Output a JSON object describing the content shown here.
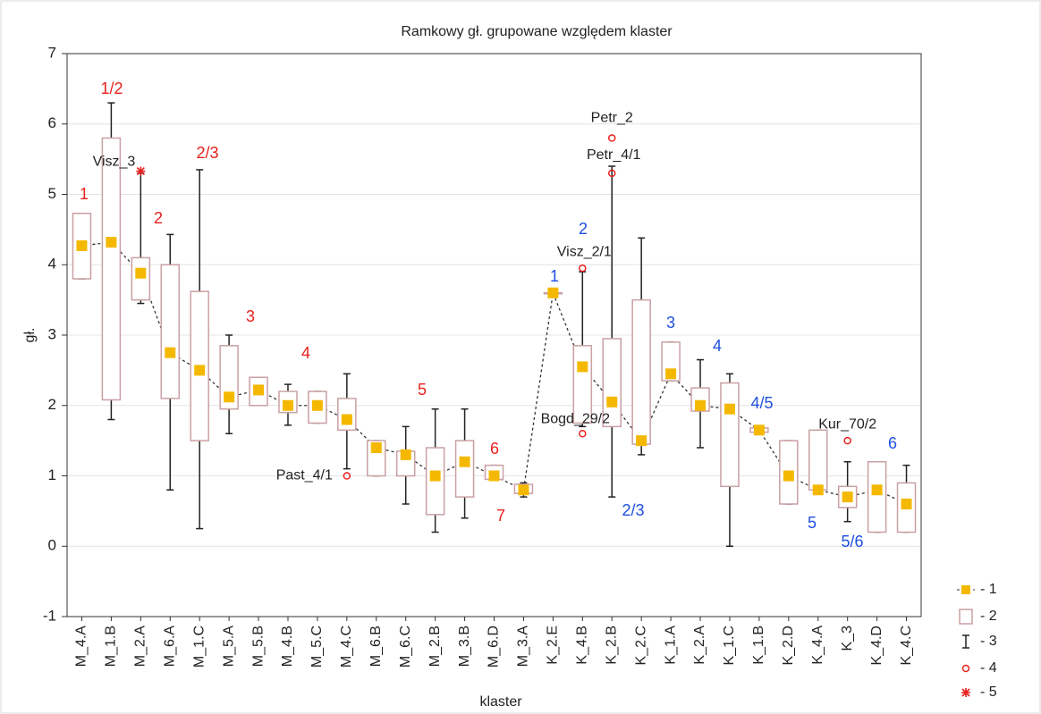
{
  "chart_data": {
    "type": "box",
    "title": "Ramkowy   gł. grupowane względem klaster",
    "x_label": "klaster",
    "y_label": "gł.",
    "categories": [
      "M_4.A",
      "M_1.B",
      "M_2.A",
      "M_6.A",
      "M_1.C",
      "M_5.A",
      "M_5.B",
      "M_4.B",
      "M_5.C",
      "M_4.C",
      "M_6.B",
      "M_6.C",
      "M_2.B",
      "M_3.B",
      "M_6.D",
      "M_3.A",
      "K_2.E",
      "K_4.B",
      "K_2.B",
      "K_2.C",
      "K_1.A",
      "K_2.A",
      "K_1.C",
      "K_1.B",
      "K_2.D",
      "K_4.A",
      "K_3",
      "K_4.D",
      "K_4.C"
    ],
    "median": [
      4.27,
      4.32,
      3.88,
      2.75,
      2.5,
      2.12,
      2.22,
      2.0,
      2.0,
      1.8,
      1.4,
      1.3,
      1.0,
      1.2,
      1.0,
      0.8,
      3.6,
      2.55,
      2.05,
      1.5,
      2.45,
      2.0,
      1.95,
      1.65,
      1.0,
      0.8,
      0.7,
      0.8,
      0.6
    ],
    "q1": [
      3.8,
      2.08,
      3.5,
      2.1,
      1.5,
      1.95,
      2.0,
      1.9,
      1.75,
      1.65,
      1.0,
      1.0,
      0.45,
      0.7,
      0.95,
      0.75,
      3.6,
      1.75,
      1.7,
      1.45,
      2.35,
      1.92,
      0.85,
      1.62,
      0.6,
      0.8,
      0.55,
      0.2,
      0.2
    ],
    "q3": [
      4.73,
      5.8,
      4.1,
      4.0,
      3.62,
      2.85,
      2.4,
      2.2,
      2.2,
      2.1,
      1.5,
      1.35,
      1.4,
      1.5,
      1.15,
      0.88,
      3.6,
      2.85,
      2.95,
      3.5,
      2.9,
      2.25,
      2.32,
      1.68,
      1.5,
      1.65,
      0.85,
      1.2,
      0.9
    ],
    "min": [
      3.8,
      1.8,
      3.45,
      0.8,
      0.25,
      1.6,
      2.0,
      1.72,
      1.75,
      1.1,
      1.0,
      0.6,
      0.2,
      0.4,
      0.95,
      0.7,
      3.6,
      1.7,
      0.7,
      1.3,
      2.35,
      1.4,
      0.0,
      1.62,
      0.6,
      0.8,
      0.35,
      0.2,
      0.2
    ],
    "max": [
      4.73,
      6.3,
      5.3,
      4.43,
      5.35,
      3.0,
      2.4,
      2.3,
      2.2,
      2.45,
      1.5,
      1.7,
      1.95,
      1.95,
      1.15,
      0.9,
      3.6,
      3.9,
      5.4,
      4.38,
      2.9,
      2.65,
      2.45,
      1.68,
      1.5,
      1.65,
      1.2,
      1.2,
      1.15
    ],
    "outliers": [
      [],
      [],
      [],
      [],
      [],
      [],
      [],
      [],
      [],
      [
        {
          "value": 1.0,
          "label": "Past_4/1"
        }
      ],
      [],
      [],
      [],
      [],
      [],
      [],
      [],
      [
        {
          "value": 3.95,
          "label": "Visz_2/1"
        },
        {
          "value": 1.6,
          "label": "Bogd_29/2"
        }
      ],
      [
        {
          "value": 5.8,
          "label": "Petr_2"
        },
        {
          "value": 5.3,
          "label": "Petr_4/1"
        }
      ],
      [],
      [],
      [],
      [],
      [],
      [],
      [],
      [
        {
          "value": 1.5,
          "label": "Kur_70/2"
        }
      ],
      [],
      []
    ],
    "extremes": [
      [],
      [],
      [
        {
          "value": 5.33,
          "label": "Visz_3"
        }
      ],
      [],
      [],
      [],
      [],
      [],
      [],
      [],
      [],
      [],
      [],
      [],
      [],
      [],
      [],
      [],
      [],
      [],
      [],
      [],
      [],
      [],
      [],
      [],
      [],
      [],
      []
    ],
    "ylim": [
      -1,
      7
    ],
    "yticks": [
      -1,
      0,
      1,
      2,
      3,
      4,
      5,
      6,
      7
    ],
    "grid": true,
    "colors": {
      "median": "#f5b800",
      "box": "#c9a0a4",
      "whisker": "#222222",
      "outlier": "#e8211d",
      "extreme": "#e8211d"
    },
    "legend": {
      "position": "right",
      "labels": [
        "- 1",
        "- 2",
        "- 3",
        "- 4",
        "- 5"
      ]
    },
    "annotations": [
      {
        "text": "1",
        "color": "#e8211d"
      },
      {
        "text": "1/2",
        "color": "#e8211d"
      },
      {
        "text": "2/3",
        "color": "#e8211d"
      },
      {
        "text": "2",
        "color": "#e8211d"
      },
      {
        "text": "3",
        "color": "#e8211d"
      },
      {
        "text": "4",
        "color": "#e8211d"
      },
      {
        "text": "5",
        "color": "#e8211d"
      },
      {
        "text": "6",
        "color": "#e8211d"
      },
      {
        "text": "7",
        "color": "#e8211d"
      },
      {
        "text": "1",
        "color": "#1f4fe0"
      },
      {
        "text": "2",
        "color": "#1f4fe0"
      },
      {
        "text": "2/3",
        "color": "#1f4fe0"
      },
      {
        "text": "3",
        "color": "#1f4fe0"
      },
      {
        "text": "4",
        "color": "#1f4fe0"
      },
      {
        "text": "4/5",
        "color": "#1f4fe0"
      },
      {
        "text": "5",
        "color": "#1f4fe0"
      },
      {
        "text": "5/6",
        "color": "#1f4fe0"
      },
      {
        "text": "6",
        "color": "#1f4fe0"
      }
    ]
  }
}
